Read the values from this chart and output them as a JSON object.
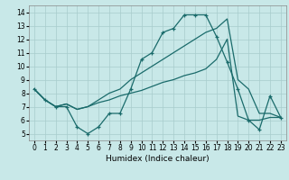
{
  "xlabel": "Humidex (Indice chaleur)",
  "xlim": [
    -0.5,
    23.5
  ],
  "ylim": [
    4.5,
    14.5
  ],
  "yticks": [
    5,
    6,
    7,
    8,
    9,
    10,
    11,
    12,
    13,
    14
  ],
  "xticks": [
    0,
    1,
    2,
    3,
    4,
    5,
    6,
    7,
    8,
    9,
    10,
    11,
    12,
    13,
    14,
    15,
    16,
    17,
    18,
    19,
    20,
    21,
    22,
    23
  ],
  "background_color": "#c8e8e8",
  "grid_color": "#a8cccc",
  "line_color": "#1a6b6b",
  "line1_y": [
    8.3,
    7.5,
    7.0,
    7.0,
    5.5,
    5.0,
    5.5,
    6.5,
    6.5,
    8.3,
    10.5,
    11.0,
    12.5,
    12.8,
    13.8,
    13.8,
    13.8,
    12.2,
    10.3,
    8.3,
    6.0,
    5.3,
    7.8,
    6.2
  ],
  "line2_y": [
    8.3,
    7.5,
    7.0,
    7.2,
    6.8,
    7.0,
    7.5,
    8.0,
    8.3,
    9.0,
    9.5,
    10.0,
    10.5,
    11.0,
    11.5,
    12.0,
    12.5,
    12.8,
    13.5,
    9.0,
    8.3,
    6.5,
    6.5,
    6.2
  ],
  "line3_y": [
    8.3,
    7.5,
    7.0,
    7.2,
    6.8,
    7.0,
    7.3,
    7.5,
    7.8,
    8.0,
    8.2,
    8.5,
    8.8,
    9.0,
    9.3,
    9.5,
    9.8,
    10.5,
    12.0,
    6.3,
    6.0,
    6.0,
    6.2,
    6.2
  ]
}
